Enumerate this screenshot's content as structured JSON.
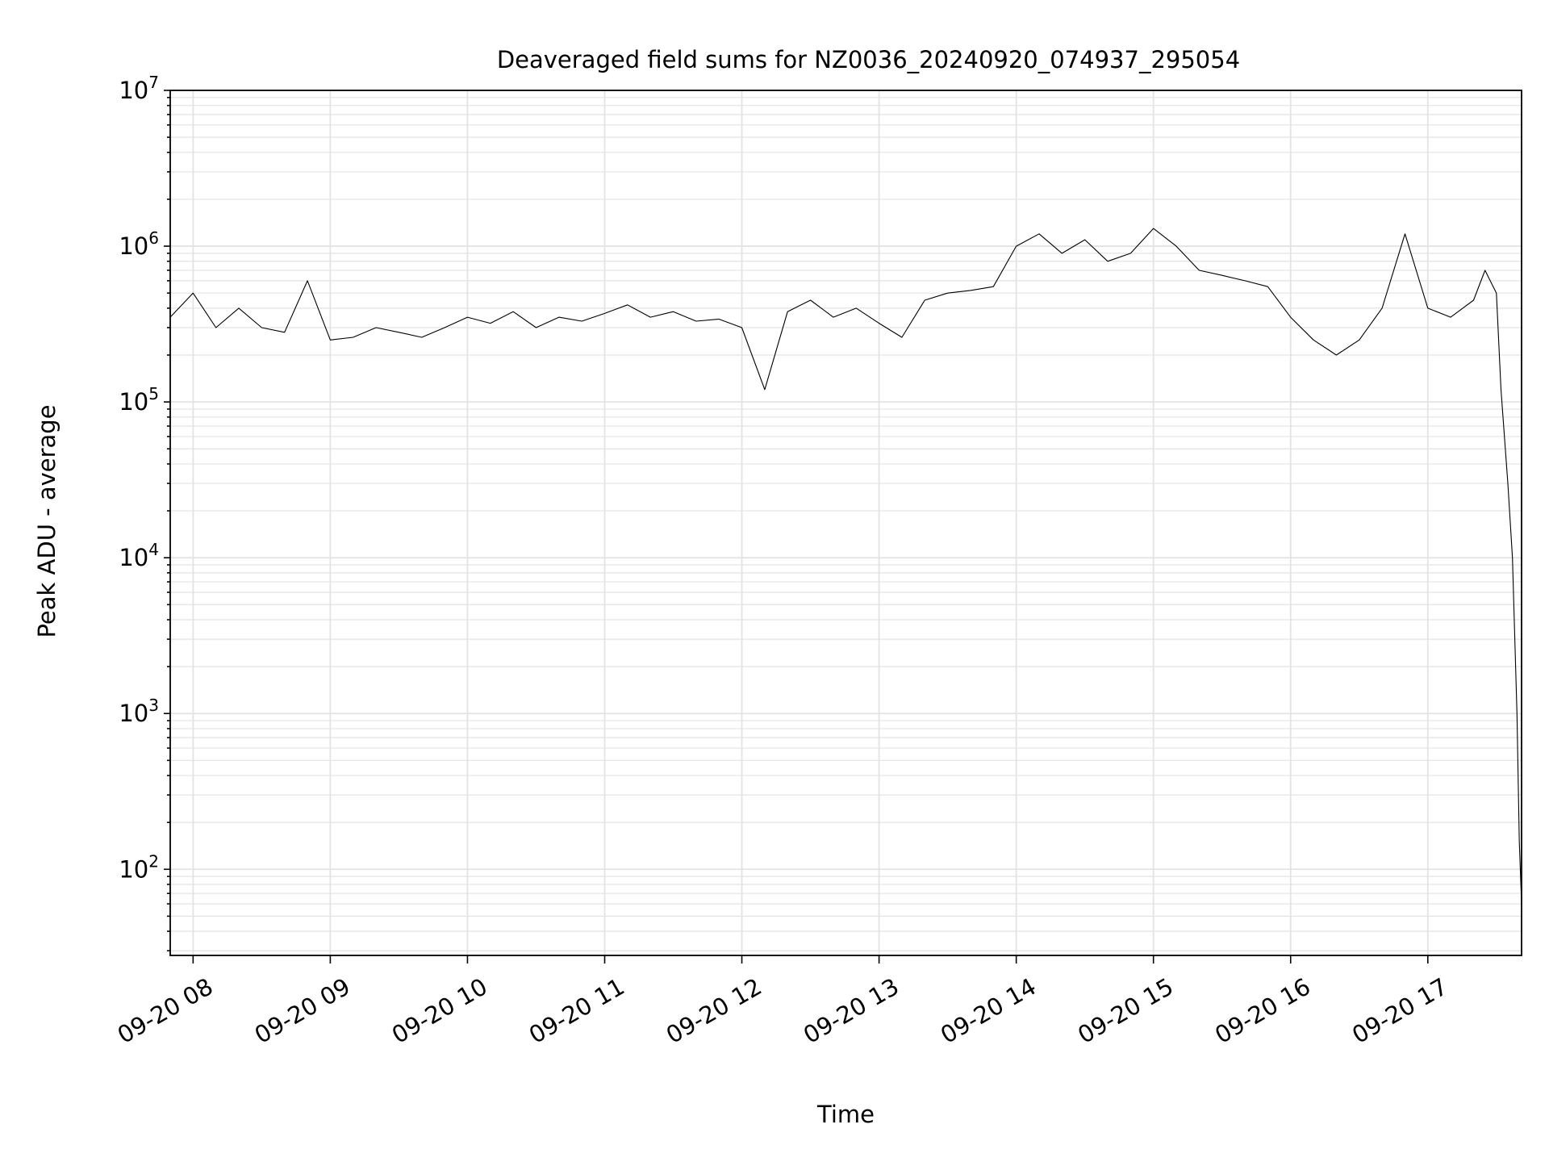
{
  "chart_data": {
    "type": "line",
    "title": "Deaveraged field sums for NZ0036_20240920_074937_295054",
    "xlabel": "Time",
    "ylabel": "Peak ADU - average",
    "yscale": "log",
    "ylim": [
      28,
      10000000
    ],
    "xlim": [
      "2024-09-20 07:50",
      "2024-09-20 17:41"
    ],
    "grid": true,
    "grid_minor": true,
    "x_ticks": [
      {
        "value": "2024-09-20 08:00",
        "label": "09-20 08"
      },
      {
        "value": "2024-09-20 09:00",
        "label": "09-20 09"
      },
      {
        "value": "2024-09-20 10:00",
        "label": "09-20 10"
      },
      {
        "value": "2024-09-20 11:00",
        "label": "09-20 11"
      },
      {
        "value": "2024-09-20 12:00",
        "label": "09-20 12"
      },
      {
        "value": "2024-09-20 13:00",
        "label": "09-20 13"
      },
      {
        "value": "2024-09-20 14:00",
        "label": "09-20 14"
      },
      {
        "value": "2024-09-20 15:00",
        "label": "09-20 15"
      },
      {
        "value": "2024-09-20 16:00",
        "label": "09-20 16"
      },
      {
        "value": "2024-09-20 17:00",
        "label": "09-20 17"
      }
    ],
    "y_ticks": [
      {
        "value": 100,
        "base": "10",
        "exp": "2"
      },
      {
        "value": 1000,
        "base": "10",
        "exp": "3"
      },
      {
        "value": 10000,
        "base": "10",
        "exp": "4"
      },
      {
        "value": 100000,
        "base": "10",
        "exp": "5"
      },
      {
        "value": 1000000,
        "base": "10",
        "exp": "6"
      },
      {
        "value": 10000000,
        "base": "10",
        "exp": "7"
      }
    ],
    "series": [
      {
        "color": "#000000",
        "x": [
          "2024-09-20 07:50",
          "2024-09-20 08:00",
          "2024-09-20 08:10",
          "2024-09-20 08:20",
          "2024-09-20 08:30",
          "2024-09-20 08:40",
          "2024-09-20 08:50",
          "2024-09-20 09:00",
          "2024-09-20 09:10",
          "2024-09-20 09:20",
          "2024-09-20 09:30",
          "2024-09-20 09:40",
          "2024-09-20 09:50",
          "2024-09-20 10:00",
          "2024-09-20 10:10",
          "2024-09-20 10:20",
          "2024-09-20 10:30",
          "2024-09-20 10:40",
          "2024-09-20 10:50",
          "2024-09-20 11:00",
          "2024-09-20 11:10",
          "2024-09-20 11:20",
          "2024-09-20 11:30",
          "2024-09-20 11:40",
          "2024-09-20 11:50",
          "2024-09-20 12:00",
          "2024-09-20 12:10",
          "2024-09-20 12:20",
          "2024-09-20 12:30",
          "2024-09-20 12:40",
          "2024-09-20 12:50",
          "2024-09-20 13:00",
          "2024-09-20 13:10",
          "2024-09-20 13:20",
          "2024-09-20 13:30",
          "2024-09-20 13:40",
          "2024-09-20 13:50",
          "2024-09-20 14:00",
          "2024-09-20 14:10",
          "2024-09-20 14:20",
          "2024-09-20 14:30",
          "2024-09-20 14:40",
          "2024-09-20 14:50",
          "2024-09-20 15:00",
          "2024-09-20 15:10",
          "2024-09-20 15:20",
          "2024-09-20 15:30",
          "2024-09-20 15:40",
          "2024-09-20 15:50",
          "2024-09-20 16:00",
          "2024-09-20 16:10",
          "2024-09-20 16:20",
          "2024-09-20 16:30",
          "2024-09-20 16:40",
          "2024-09-20 16:50",
          "2024-09-20 17:00",
          "2024-09-20 17:10",
          "2024-09-20 17:20",
          "2024-09-20 17:25",
          "2024-09-20 17:30",
          "2024-09-20 17:32",
          "2024-09-20 17:35",
          "2024-09-20 17:37",
          "2024-09-20 17:39",
          "2024-09-20 17:40",
          "2024-09-20 17:41"
        ],
        "y": [
          350000,
          500000,
          300000,
          400000,
          300000,
          280000,
          600000,
          250000,
          260000,
          300000,
          280000,
          260000,
          300000,
          350000,
          320000,
          380000,
          300000,
          350000,
          330000,
          370000,
          420000,
          350000,
          380000,
          330000,
          340000,
          300000,
          120000,
          380000,
          450000,
          350000,
          400000,
          320000,
          260000,
          450000,
          500000,
          520000,
          550000,
          1000000,
          1200000,
          900000,
          1100000,
          800000,
          900000,
          1300000,
          1000000,
          700000,
          650000,
          600000,
          550000,
          350000,
          250000,
          200000,
          250000,
          400000,
          1200000,
          400000,
          350000,
          450000,
          700000,
          500000,
          120000,
          30000,
          10000,
          1000,
          150,
          60
        ]
      }
    ]
  }
}
